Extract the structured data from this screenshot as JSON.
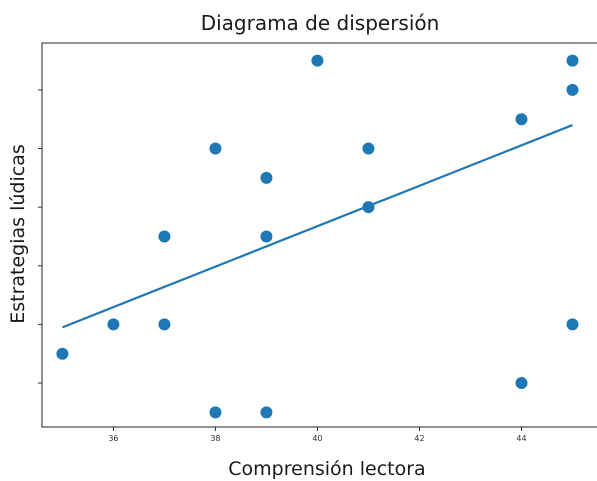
{
  "chart_data": {
    "type": "scatter",
    "title": "Diagrama de dispersión",
    "xlabel": "Comprensión lectora",
    "ylabel": "Estrategias lúdicas",
    "xlim": [
      34.6,
      45.5
    ],
    "ylim": [
      0.5,
      13.6
    ],
    "grid": false,
    "x_ticks": [
      36,
      38,
      40,
      42,
      44
    ],
    "y_ticks": [
      2,
      4,
      6,
      8,
      10,
      12
    ],
    "y_ticks_labeled": false,
    "series": [
      {
        "color": "#1f77b4",
        "points": [
          {
            "x": 35,
            "y": 3
          },
          {
            "x": 36,
            "y": 4
          },
          {
            "x": 37,
            "y": 4
          },
          {
            "x": 37,
            "y": 7
          },
          {
            "x": 38,
            "y": 1
          },
          {
            "x": 38,
            "y": 10
          },
          {
            "x": 39,
            "y": 1
          },
          {
            "x": 39,
            "y": 7
          },
          {
            "x": 39,
            "y": 9
          },
          {
            "x": 40,
            "y": 13
          },
          {
            "x": 41,
            "y": 8
          },
          {
            "x": 41,
            "y": 10
          },
          {
            "x": 44,
            "y": 2
          },
          {
            "x": 44,
            "y": 11
          },
          {
            "x": 45,
            "y": 4
          },
          {
            "x": 45,
            "y": 12
          },
          {
            "x": 45,
            "y": 13
          }
        ]
      }
    ],
    "trend_line": {
      "color": "#1f77b4",
      "points": [
        {
          "x": 35,
          "y": 3.9
        },
        {
          "x": 45,
          "y": 10.8
        }
      ]
    }
  }
}
